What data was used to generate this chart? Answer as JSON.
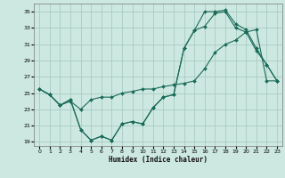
{
  "xlabel": "Humidex (Indice chaleur)",
  "background_color": "#cde8e0",
  "grid_color": "#a8ccC4",
  "line_color": "#1a6b5a",
  "xlim": [
    -0.5,
    23.5
  ],
  "ylim": [
    18.5,
    36
  ],
  "xticks": [
    0,
    1,
    2,
    3,
    4,
    5,
    6,
    7,
    8,
    9,
    10,
    11,
    12,
    13,
    14,
    15,
    16,
    17,
    18,
    19,
    20,
    21,
    22,
    23
  ],
  "yticks": [
    19,
    21,
    23,
    25,
    27,
    29,
    31,
    33,
    35
  ],
  "line1_x": [
    0,
    1,
    2,
    3,
    4,
    5,
    6,
    7,
    8,
    9,
    10,
    11,
    12,
    13,
    14,
    15,
    16,
    17,
    18,
    19,
    20,
    21,
    22,
    23
  ],
  "line1_y": [
    25.5,
    24.8,
    23.5,
    24.2,
    20.5,
    19.2,
    19.7,
    19.2,
    21.2,
    21.5,
    21.2,
    23.2,
    24.5,
    24.8,
    30.5,
    32.7,
    33.2,
    34.8,
    35.0,
    33.0,
    32.5,
    30.2,
    28.5,
    26.5
  ],
  "line2_x": [
    0,
    1,
    2,
    3,
    4,
    5,
    6,
    7,
    8,
    9,
    10,
    11,
    12,
    13,
    14,
    15,
    16,
    17,
    18,
    19,
    20,
    21,
    22,
    23
  ],
  "line2_y": [
    25.5,
    24.8,
    23.5,
    24.0,
    23.0,
    24.2,
    24.5,
    24.5,
    25.0,
    25.2,
    25.5,
    25.5,
    25.8,
    26.0,
    26.2,
    26.5,
    28.0,
    30.0,
    31.0,
    31.5,
    32.5,
    32.8,
    26.5,
    26.5
  ],
  "line3_x": [
    0,
    1,
    2,
    3,
    4,
    5,
    6,
    7,
    8,
    9,
    10,
    11,
    12,
    13,
    14,
    15,
    16,
    17,
    18,
    19,
    20,
    21,
    22,
    23
  ],
  "line3_y": [
    25.5,
    24.8,
    23.5,
    24.2,
    20.5,
    19.2,
    19.7,
    19.2,
    21.2,
    21.5,
    21.2,
    23.2,
    24.5,
    24.8,
    30.5,
    32.7,
    35.0,
    35.0,
    35.2,
    33.5,
    32.8,
    30.5,
    28.5,
    26.5
  ]
}
